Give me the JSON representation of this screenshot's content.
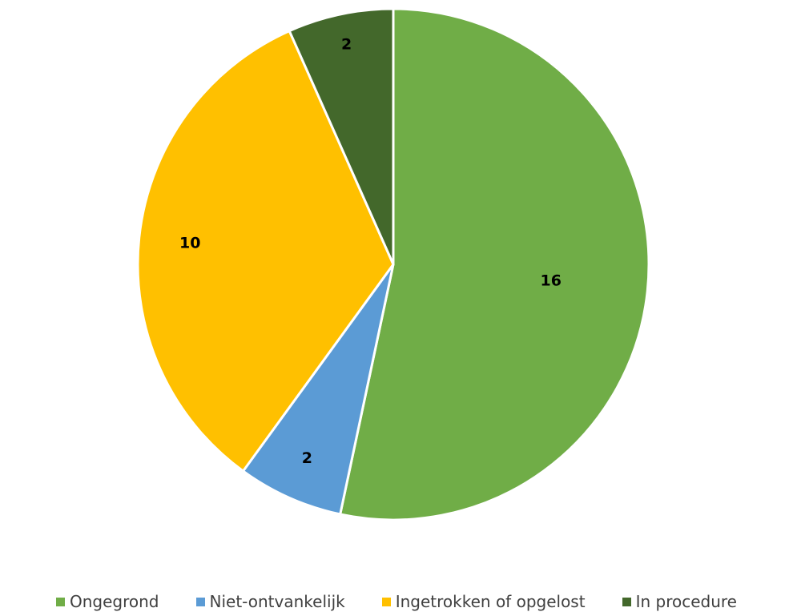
{
  "chart_data": {
    "type": "pie",
    "categories": [
      "Ongegrond",
      "Niet-ontvankelijk",
      "Ingetrokken of opgelost",
      "In procedure"
    ],
    "values": [
      16,
      2,
      10,
      2
    ],
    "data_labels": [
      "16",
      "2",
      "10",
      "2"
    ],
    "colors": [
      "#70ad47",
      "#5b9bd5",
      "#ffc000",
      "#43682b"
    ],
    "start_angle_deg": 0,
    "direction": "clockwise",
    "legend_position": "bottom",
    "title": ""
  }
}
